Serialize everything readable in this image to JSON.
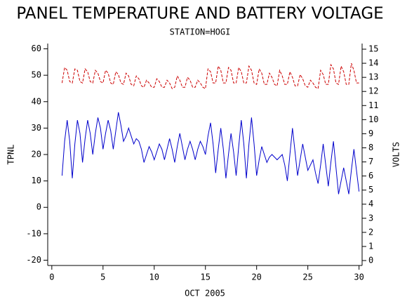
{
  "chart_data": {
    "type": "line",
    "title": "PANEL TEMPERATURE AND BATTERY VOLTAGE",
    "subtitle": "STATION=HOGI",
    "x_label": "OCT 2005",
    "y_label": "TPNL",
    "y2_label": "VOLTS",
    "xlim": [
      -0.4,
      30.3
    ],
    "xticks": [
      0,
      5,
      10,
      15,
      20,
      25,
      30
    ],
    "ylim": [
      -22,
      62
    ],
    "yticks": [
      -20,
      -10,
      0,
      10,
      20,
      30,
      40,
      50,
      60
    ],
    "y2lim": [
      -0.35,
      15.4
    ],
    "y2ticks": [
      0,
      1,
      2,
      3,
      4,
      5,
      6,
      7,
      8,
      9,
      10,
      11,
      12,
      13,
      14,
      15
    ],
    "x": [
      1,
      1.25,
      1.5,
      1.75,
      2,
      2.25,
      2.5,
      2.75,
      3,
      3.25,
      3.5,
      3.75,
      4,
      4.25,
      4.5,
      4.75,
      5,
      5.25,
      5.5,
      5.75,
      6,
      6.25,
      6.5,
      6.75,
      7,
      7.25,
      7.5,
      7.75,
      8,
      8.25,
      8.5,
      8.75,
      9,
      9.25,
      9.5,
      9.75,
      10,
      10.25,
      10.5,
      10.75,
      11,
      11.25,
      11.5,
      11.75,
      12,
      12.25,
      12.5,
      12.75,
      13,
      13.25,
      13.5,
      13.75,
      14,
      14.25,
      14.5,
      14.75,
      15,
      15.25,
      15.5,
      15.75,
      16,
      16.25,
      16.5,
      16.75,
      17,
      17.25,
      17.5,
      17.75,
      18,
      18.25,
      18.5,
      18.75,
      19,
      19.25,
      19.5,
      19.75,
      20,
      20.25,
      20.5,
      20.75,
      21,
      21.25,
      21.5,
      21.75,
      22,
      22.25,
      22.5,
      22.75,
      23,
      23.25,
      23.5,
      23.75,
      24,
      24.25,
      24.5,
      24.75,
      25,
      25.25,
      25.5,
      25.75,
      26,
      26.25,
      26.5,
      26.75,
      27,
      27.25,
      27.5,
      27.75,
      28,
      28.25,
      28.5,
      28.75,
      29,
      29.25,
      29.5,
      29.75,
      30
    ],
    "series": [
      {
        "name": "TPNL",
        "color": "#0000cc",
        "axis": "y",
        "values": [
          12,
          25,
          33,
          25,
          11,
          24,
          33,
          28,
          17,
          26,
          33,
          28,
          20,
          28,
          34,
          30,
          22,
          28,
          33,
          29,
          22,
          29,
          36,
          31,
          25,
          27,
          30,
          27,
          24,
          26,
          25,
          22,
          17,
          20,
          23,
          21,
          18,
          21,
          24,
          22,
          18,
          22,
          26,
          22,
          17,
          23,
          28,
          23,
          18,
          22,
          25,
          22,
          18,
          22,
          25,
          23,
          20,
          27,
          32,
          24,
          13,
          22,
          30,
          22,
          11,
          20,
          28,
          21,
          12,
          23,
          33,
          24,
          11,
          24,
          34,
          24,
          12,
          18,
          23,
          20,
          17,
          19,
          20,
          19,
          18,
          19,
          20,
          16,
          10,
          20,
          30,
          21,
          12,
          18,
          24,
          19,
          14,
          16,
          18,
          13,
          9,
          16,
          24,
          16,
          8,
          17,
          25,
          15,
          5,
          10,
          15,
          10,
          5,
          14,
          22,
          14,
          6
        ]
      },
      {
        "name": "VOLTS",
        "color": "#cc0000",
        "axis": "y2",
        "values": [
          12.6,
          13.7,
          13.5,
          12.7,
          12.6,
          13.6,
          13.5,
          12.7,
          12.6,
          13.6,
          13.4,
          12.7,
          12.6,
          13.5,
          13.3,
          12.7,
          12.6,
          13.5,
          13.3,
          12.6,
          12.5,
          13.4,
          13.2,
          12.6,
          12.5,
          13.3,
          13.1,
          12.5,
          12.4,
          13.1,
          12.9,
          12.4,
          12.3,
          12.8,
          12.6,
          12.3,
          12.3,
          12.9,
          12.7,
          12.3,
          12.3,
          12.8,
          12.6,
          12.2,
          12.3,
          13.1,
          12.8,
          12.3,
          12.3,
          13.0,
          12.8,
          12.3,
          12.3,
          12.8,
          12.6,
          12.3,
          12.2,
          13.6,
          13.4,
          12.6,
          12.6,
          13.8,
          13.5,
          12.6,
          12.6,
          13.7,
          13.5,
          12.6,
          12.6,
          13.7,
          13.4,
          12.6,
          12.6,
          13.8,
          13.5,
          12.6,
          12.5,
          13.6,
          13.3,
          12.5,
          12.5,
          13.3,
          13.0,
          12.5,
          12.4,
          13.5,
          13.1,
          12.5,
          12.5,
          13.4,
          13.0,
          12.4,
          12.4,
          13.2,
          12.9,
          12.4,
          12.3,
          12.8,
          12.6,
          12.3,
          12.2,
          13.5,
          13.2,
          12.5,
          12.5,
          13.9,
          13.6,
          12.6,
          12.5,
          13.8,
          13.4,
          12.5,
          12.5,
          14.0,
          13.5,
          12.6,
          12.6
        ]
      }
    ]
  }
}
